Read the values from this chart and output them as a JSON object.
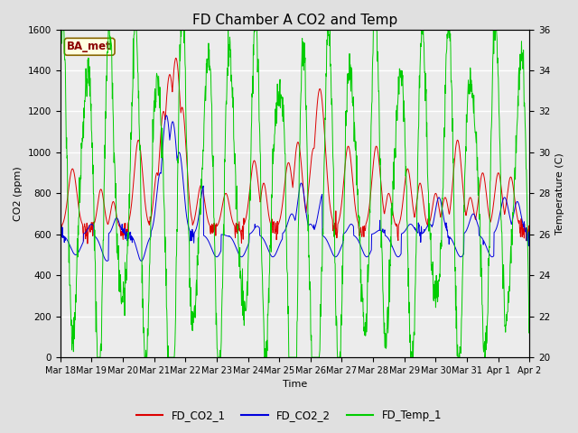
{
  "title": "FD Chamber A CO2 and Temp",
  "xlabel": "Time",
  "ylabel_left": "CO2 (ppm)",
  "ylabel_right": "Temperature (C)",
  "annotation": "BA_met",
  "co2_ylim": [
    0,
    1600
  ],
  "temp_ylim": [
    20,
    36
  ],
  "co2_yticks": [
    0,
    200,
    400,
    600,
    800,
    1000,
    1200,
    1400,
    1600
  ],
  "temp_yticks": [
    20,
    22,
    24,
    26,
    28,
    30,
    32,
    34,
    36
  ],
  "xtick_labels": [
    "Mar 18",
    "Mar 19",
    "Mar 20",
    "Mar 21",
    "Mar 22",
    "Mar 23",
    "Mar 24",
    "Mar 25",
    "Mar 26",
    "Mar 27",
    "Mar 28",
    "Mar 29",
    "Mar 30",
    "Mar 31",
    "Apr 1",
    "Apr 2"
  ],
  "color_co2_1": "#dd0000",
  "color_co2_2": "#0000dd",
  "color_temp": "#00cc00",
  "legend_labels": [
    "FD_CO2_1",
    "FD_CO2_2",
    "FD_Temp_1"
  ],
  "bg_color": "#e0e0e0",
  "plot_bg": "#ececec",
  "title_fontsize": 11,
  "axis_fontsize": 8,
  "tick_fontsize": 7.5,
  "legend_fontsize": 8.5
}
